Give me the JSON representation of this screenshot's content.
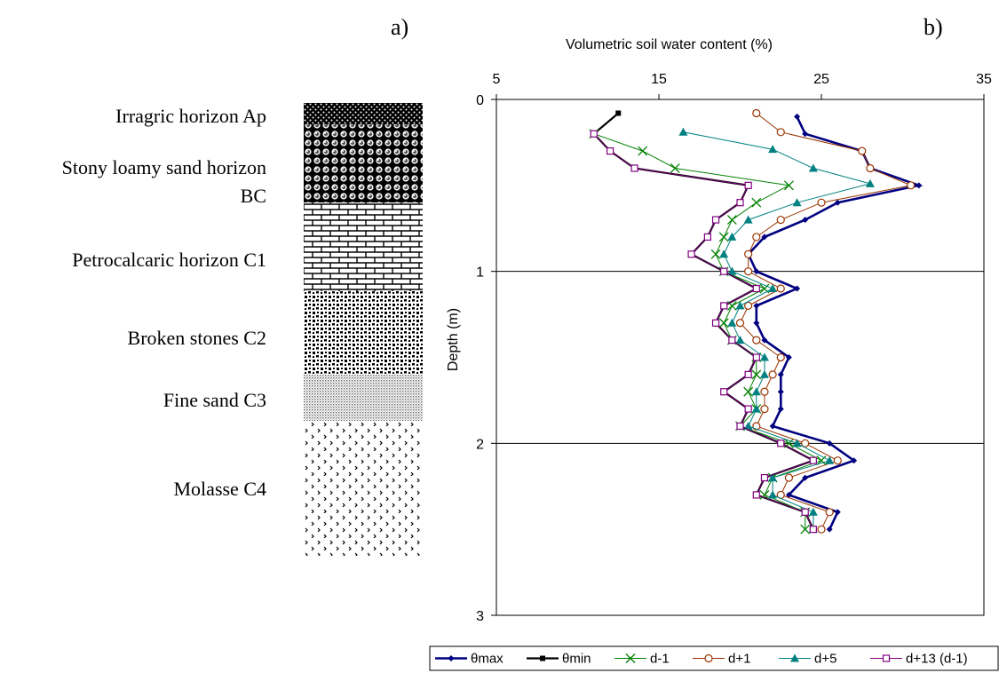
{
  "panel_a": {
    "letter": "a)",
    "horizons": [
      {
        "name": "Irragric horizon  Ap",
        "pattern": "dense-dots"
      },
      {
        "name": "Stony loamy sand horizon",
        "name2": "BC",
        "pattern": "spheres"
      },
      {
        "name": "Petrocalcaric horizon  C1",
        "pattern": "bricks"
      },
      {
        "name": "Broken stones C2",
        "pattern": "stones"
      },
      {
        "name": "Fine sand  C3",
        "pattern": "fine-dots"
      },
      {
        "name": "Molasse  C4",
        "pattern": "chevrons"
      }
    ]
  },
  "chart_data": {
    "type": "line",
    "letter": "b)",
    "title": "",
    "xlabel": "Volumetric soil water content (%)",
    "ylabel": "Depth (m)",
    "xlim": [
      5,
      35
    ],
    "ylim": [
      0,
      3
    ],
    "x_ticks": [
      5,
      15,
      25,
      35
    ],
    "y_ticks": [
      0,
      1,
      2,
      3
    ],
    "y_reversed": true,
    "x_axis_position": "top",
    "gridlines": "horizontal",
    "legend_position": "bottom",
    "series": [
      {
        "name": "θmax",
        "color": "#000080",
        "marker": "diamond",
        "points": [
          [
            23.5,
            0.1
          ],
          [
            24,
            0.2
          ],
          [
            27.5,
            0.3
          ],
          [
            28,
            0.4
          ],
          [
            31,
            0.5
          ],
          [
            26,
            0.6
          ],
          [
            24,
            0.7
          ],
          [
            21.5,
            0.8
          ],
          [
            20.5,
            0.9
          ],
          [
            21,
            1.0
          ],
          [
            23.5,
            1.1
          ],
          [
            21,
            1.2
          ],
          [
            21,
            1.3
          ],
          [
            21.5,
            1.4
          ],
          [
            23,
            1.5
          ],
          [
            22.5,
            1.6
          ],
          [
            22.5,
            1.7
          ],
          [
            22.5,
            1.8
          ],
          [
            22,
            1.9
          ],
          [
            25.5,
            2.0
          ],
          [
            27,
            2.1
          ],
          [
            24,
            2.2
          ],
          [
            23,
            2.3
          ],
          [
            26,
            2.4
          ],
          [
            25.5,
            2.5
          ]
        ]
      },
      {
        "name": "θmin",
        "color": "#000000",
        "marker": "square",
        "points": [
          [
            12.5,
            0.08
          ],
          [
            11,
            0.2
          ],
          [
            12,
            0.3
          ],
          [
            13.5,
            0.4
          ],
          [
            20.5,
            0.5
          ],
          [
            20,
            0.6
          ],
          [
            18.5,
            0.7
          ],
          [
            18,
            0.8
          ],
          [
            17,
            0.9
          ],
          [
            19,
            1.0
          ],
          [
            21,
            1.1
          ],
          [
            19,
            1.2
          ],
          [
            18.5,
            1.3
          ],
          [
            19.5,
            1.4
          ],
          [
            21,
            1.5
          ],
          [
            20.5,
            1.6
          ],
          [
            19,
            1.7
          ],
          [
            20.5,
            1.8
          ],
          [
            20,
            1.9
          ],
          [
            22.5,
            2.0
          ],
          [
            24.5,
            2.1
          ],
          [
            21.5,
            2.2
          ],
          [
            21,
            2.3
          ],
          [
            24,
            2.4
          ],
          [
            24.5,
            2.5
          ]
        ]
      },
      {
        "name": "d-1",
        "color": "#008000",
        "marker": "cross",
        "points": [
          [
            11,
            0.2
          ],
          [
            14,
            0.3
          ],
          [
            16,
            0.4
          ],
          [
            23,
            0.5
          ],
          [
            21,
            0.6
          ],
          [
            19.5,
            0.7
          ],
          [
            19,
            0.8
          ],
          [
            18.5,
            0.9
          ],
          [
            19,
            1.0
          ],
          [
            21.5,
            1.1
          ],
          [
            19.5,
            1.2
          ],
          [
            19,
            1.3
          ],
          [
            19.5,
            1.4
          ],
          [
            21,
            1.5
          ],
          [
            21,
            1.6
          ],
          [
            20.5,
            1.7
          ],
          [
            21,
            1.8
          ],
          [
            20,
            1.9
          ],
          [
            23,
            2.0
          ],
          [
            25,
            2.1
          ],
          [
            22,
            2.2
          ],
          [
            21.5,
            2.3
          ],
          [
            24,
            2.4
          ],
          [
            24,
            2.5
          ]
        ]
      },
      {
        "name": "d+1",
        "color": "#993300",
        "marker": "circle",
        "points": [
          [
            21,
            0.08
          ],
          [
            22.5,
            0.19
          ],
          [
            27.5,
            0.3
          ],
          [
            28,
            0.4
          ],
          [
            30.5,
            0.5
          ],
          [
            25,
            0.6
          ],
          [
            22.5,
            0.7
          ],
          [
            21,
            0.8
          ],
          [
            20.5,
            0.9
          ],
          [
            20.5,
            1.0
          ],
          [
            22.5,
            1.1
          ],
          [
            20.5,
            1.2
          ],
          [
            20,
            1.3
          ],
          [
            21,
            1.4
          ],
          [
            22.5,
            1.5
          ],
          [
            22,
            1.6
          ],
          [
            21.5,
            1.7
          ],
          [
            21.5,
            1.8
          ],
          [
            21,
            1.9
          ],
          [
            24,
            2.0
          ],
          [
            26,
            2.1
          ],
          [
            23,
            2.2
          ],
          [
            22.5,
            2.3
          ],
          [
            25.5,
            2.4
          ],
          [
            25,
            2.5
          ]
        ]
      },
      {
        "name": "d+5",
        "color": "#008080",
        "marker": "triangle",
        "points": [
          [
            16.5,
            0.19
          ],
          [
            22,
            0.29
          ],
          [
            24.5,
            0.4
          ],
          [
            28,
            0.49
          ],
          [
            23.5,
            0.6
          ],
          [
            20.5,
            0.7
          ],
          [
            19.5,
            0.8
          ],
          [
            19,
            0.9
          ],
          [
            19.5,
            1.0
          ],
          [
            22,
            1.1
          ],
          [
            20,
            1.2
          ],
          [
            19.5,
            1.3
          ],
          [
            20,
            1.4
          ],
          [
            21.5,
            1.5
          ],
          [
            21.5,
            1.6
          ],
          [
            21,
            1.7
          ],
          [
            21,
            1.8
          ],
          [
            20.5,
            1.9
          ],
          [
            23.5,
            2.0
          ],
          [
            25.5,
            2.1
          ],
          [
            22,
            2.2
          ],
          [
            22,
            2.3
          ],
          [
            24.5,
            2.4
          ],
          [
            24.5,
            2.5
          ]
        ]
      },
      {
        "name": "d+13 (d-1)",
        "color": "#800080",
        "marker": "open-square",
        "points": [
          [
            11,
            0.2
          ],
          [
            12,
            0.3
          ],
          [
            13.5,
            0.4
          ],
          [
            20.5,
            0.5
          ],
          [
            20,
            0.6
          ],
          [
            18.5,
            0.7
          ],
          [
            18,
            0.8
          ],
          [
            17,
            0.9
          ],
          [
            19,
            1.0
          ],
          [
            21,
            1.1
          ],
          [
            19,
            1.2
          ],
          [
            18.5,
            1.3
          ],
          [
            19.5,
            1.4
          ],
          [
            21,
            1.5
          ],
          [
            20.5,
            1.6
          ],
          [
            19,
            1.7
          ],
          [
            20.5,
            1.8
          ],
          [
            20,
            1.9
          ],
          [
            22.5,
            2.0
          ],
          [
            24.5,
            2.1
          ],
          [
            21.5,
            2.2
          ],
          [
            21,
            2.3
          ],
          [
            24,
            2.4
          ],
          [
            24.5,
            2.5
          ]
        ]
      }
    ]
  }
}
